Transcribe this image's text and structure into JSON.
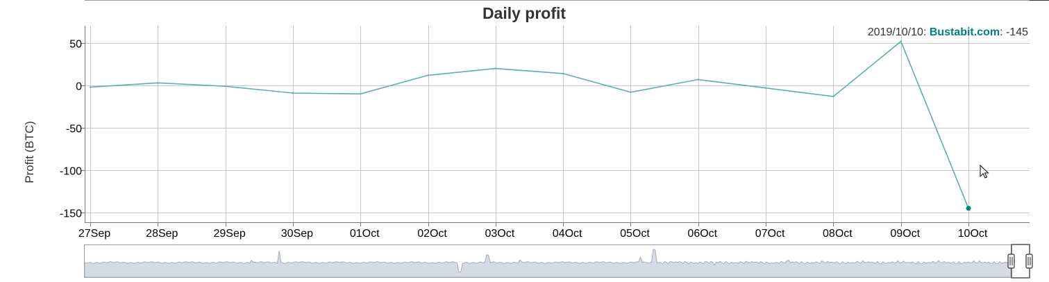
{
  "chart_data": {
    "type": "line",
    "title": "Daily profit",
    "ylabel": "Profit (BTC)",
    "xlabel": "",
    "categories": [
      "27Sep",
      "28Sep",
      "29Sep",
      "30Sep",
      "01Oct",
      "02Oct",
      "03Oct",
      "04Oct",
      "05Oct",
      "06Oct",
      "07Oct",
      "08Oct",
      "09Oct",
      "10Oct"
    ],
    "x_dates": [
      "2019/09/27",
      "2019/09/28",
      "2019/09/29",
      "2019/09/30",
      "2019/10/01",
      "2019/10/02",
      "2019/10/03",
      "2019/10/04",
      "2019/10/05",
      "2019/10/06",
      "2019/10/07",
      "2019/10/08",
      "2019/10/09",
      "2019/10/10"
    ],
    "series": [
      {
        "name": "Bustabit.com",
        "color": "#5aafaf",
        "values": [
          -2,
          3,
          -1,
          -9,
          -10,
          12,
          20,
          14,
          -8,
          7,
          -3,
          -13,
          52,
          -145
        ]
      }
    ],
    "y_ticks": [
      50,
      0,
      -50,
      -100,
      -150
    ],
    "ylim": [
      -163,
      72
    ],
    "grid": true,
    "highlight": {
      "date": "2019/10/10",
      "series": "Bustabit.com",
      "value": -145,
      "date_label": "2019/10/10: ",
      "series_label": "Bustabit.com",
      "value_label": ": -145",
      "point_color": "#008080"
    },
    "legend_position": "top-right",
    "range_selector": {
      "present": true,
      "background_color": "#d6dbe3"
    }
  }
}
